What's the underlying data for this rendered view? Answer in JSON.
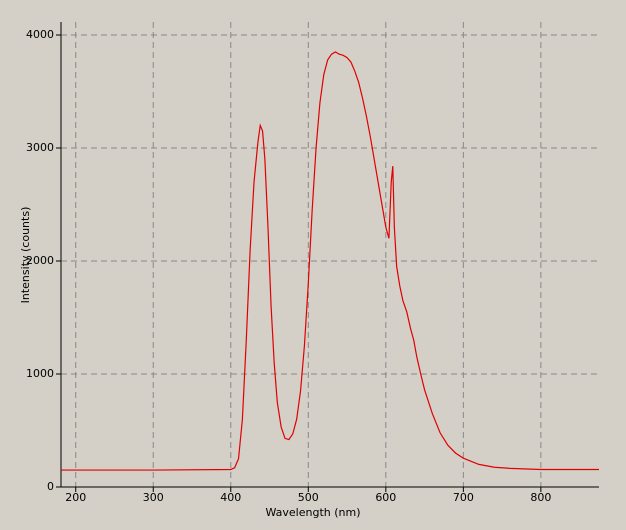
{
  "chart_data": {
    "type": "line",
    "x_label": "Wavelength (nm)",
    "y_label": "Intensity (counts)",
    "x": [
      181,
      200,
      300,
      400,
      405,
      410,
      415,
      420,
      425,
      430,
      435,
      438,
      441,
      444,
      448,
      452,
      456,
      460,
      465,
      470,
      475,
      480,
      485,
      490,
      495,
      500,
      505,
      510,
      515,
      520,
      525,
      530,
      535,
      540,
      545,
      550,
      555,
      560,
      565,
      570,
      575,
      580,
      585,
      590,
      595,
      600,
      604,
      607,
      609,
      611,
      614,
      618,
      622,
      627,
      632,
      636,
      640,
      645,
      650,
      660,
      670,
      680,
      690,
      700,
      720,
      740,
      760,
      800,
      875
    ],
    "series": [
      {
        "color": "#e00000",
        "values": [
          150,
          150,
          150,
          155,
          170,
          250,
          600,
          1300,
          2100,
          2700,
          3050,
          3200,
          3150,
          2900,
          2300,
          1600,
          1100,
          750,
          530,
          430,
          420,
          470,
          600,
          850,
          1250,
          1800,
          2450,
          3000,
          3400,
          3650,
          3780,
          3830,
          3850,
          3830,
          3820,
          3800,
          3760,
          3680,
          3580,
          3440,
          3280,
          3100,
          2900,
          2700,
          2500,
          2300,
          2200,
          2700,
          2840,
          2300,
          1950,
          1780,
          1650,
          1550,
          1400,
          1300,
          1150,
          1000,
          860,
          650,
          480,
          370,
          300,
          255,
          200,
          175,
          165,
          155,
          155
        ]
      }
    ],
    "xlim": [
      181,
      875
    ],
    "ylim": [
      0,
      4115
    ],
    "xticks": [
      200,
      300,
      400,
      500,
      600,
      700,
      800
    ],
    "yticks": [
      0,
      1000,
      2000,
      3000,
      4000
    ],
    "grid": true
  }
}
